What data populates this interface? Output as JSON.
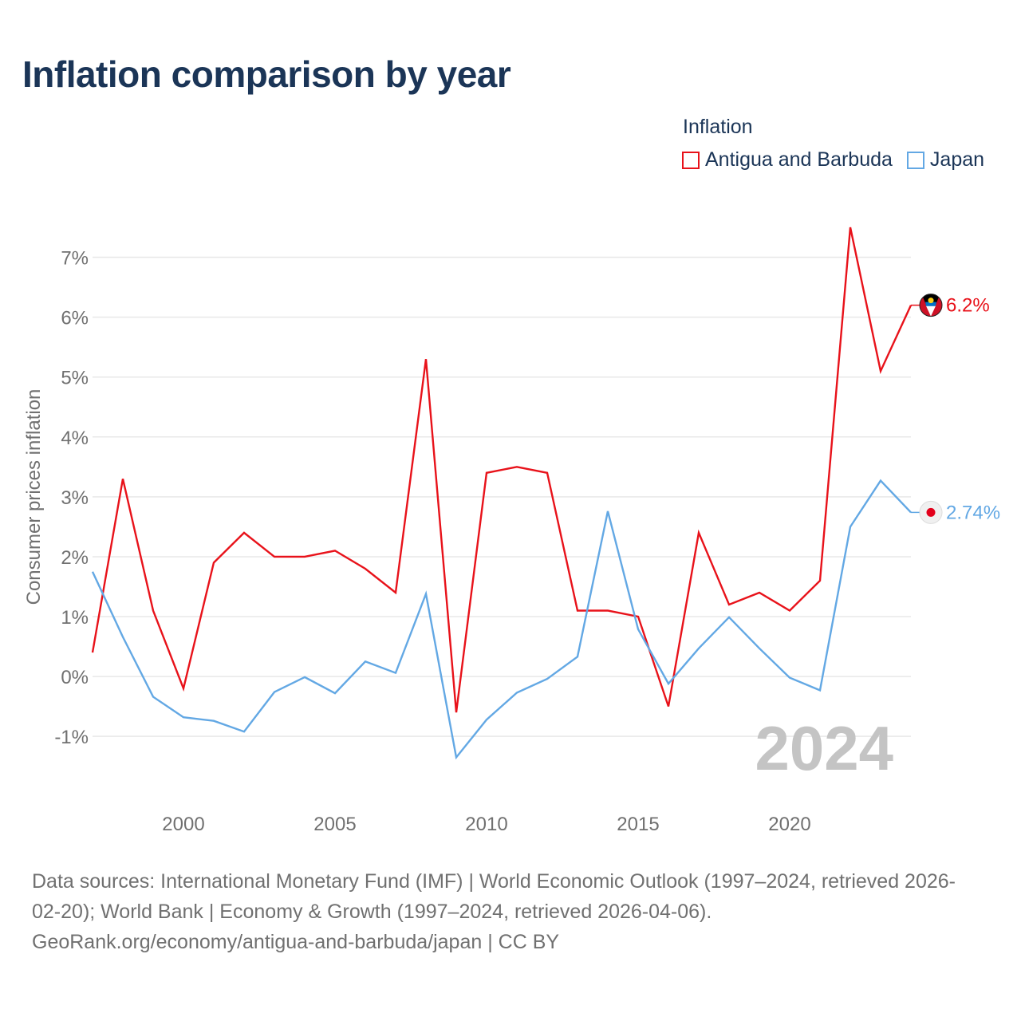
{
  "title": "Inflation comparison by year",
  "legend": {
    "title": "Inflation",
    "items": [
      {
        "label": "Antigua and Barbuda",
        "color": "#e8121a"
      },
      {
        "label": "Japan",
        "color": "#63a8e4"
      }
    ]
  },
  "footer": {
    "line1": "Data sources: International Monetary Fund (IMF) | World Economic Outlook (1997–2024, retrieved 2026-",
    "line2": "02-20); World Bank | Economy & Growth (1997–2024, retrieved 2026-04-06).",
    "line3": "GeoRank.org/economy/antigua-and-barbuda/japan | CC BY"
  },
  "chart_data": {
    "type": "line",
    "title": "Inflation comparison by year",
    "xlabel": "",
    "ylabel": "Consumer prices inflation",
    "year_watermark": "2024",
    "x": [
      1997,
      1998,
      1999,
      2000,
      2001,
      2002,
      2003,
      2004,
      2005,
      2006,
      2007,
      2008,
      2009,
      2010,
      2011,
      2012,
      2013,
      2014,
      2015,
      2016,
      2017,
      2018,
      2019,
      2020,
      2021,
      2022,
      2023,
      2024
    ],
    "xlim": [
      1997,
      2024
    ],
    "ylim": [
      -1.85,
      7.5
    ],
    "x_ticks": [
      2000,
      2005,
      2010,
      2015,
      2020
    ],
    "y_ticks": [
      -1,
      0,
      1,
      2,
      3,
      4,
      5,
      6,
      7
    ],
    "y_tick_labels": [
      "-1%",
      "0%",
      "1%",
      "2%",
      "3%",
      "4%",
      "5%",
      "6%",
      "7%"
    ],
    "grid": true,
    "series": [
      {
        "name": "Antigua and Barbuda",
        "color": "#e8121a",
        "end_label": "6.2%",
        "values": [
          0.4,
          3.3,
          1.1,
          -0.2,
          1.9,
          2.4,
          2.0,
          2.0,
          2.1,
          1.8,
          1.4,
          5.3,
          -0.6,
          3.4,
          3.5,
          3.4,
          1.1,
          1.1,
          1.0,
          -0.5,
          2.4,
          1.2,
          1.4,
          1.1,
          1.6,
          7.5,
          5.1,
          6.2
        ]
      },
      {
        "name": "Japan",
        "color": "#63a8e4",
        "end_label": "2.74%",
        "values": [
          1.75,
          0.66,
          -0.34,
          -0.68,
          -0.74,
          -0.92,
          -0.26,
          -0.01,
          -0.28,
          0.25,
          0.06,
          1.38,
          -1.35,
          -0.72,
          -0.27,
          -0.04,
          0.33,
          2.76,
          0.79,
          -0.12,
          0.47,
          0.99,
          0.47,
          -0.02,
          -0.23,
          2.5,
          3.27,
          2.74
        ]
      }
    ]
  }
}
